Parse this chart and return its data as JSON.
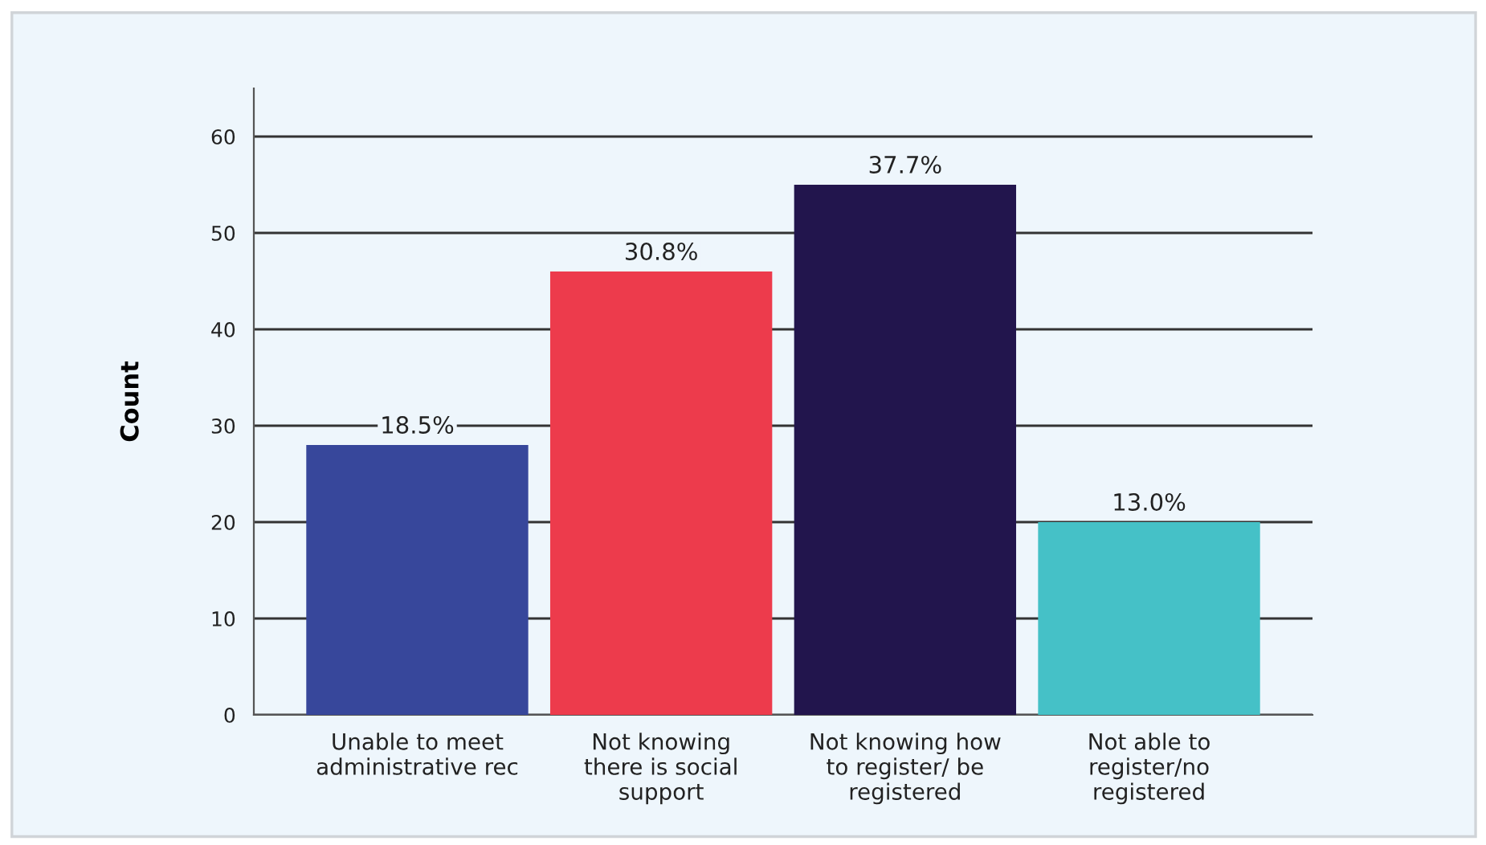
{
  "chart_data": {
    "type": "bar",
    "ylabel": "Count",
    "categories": [
      "Unable to meet\nadministrative rec",
      "Not knowing\nthere is social\nsupport",
      "Not knowing how\nto register/ be\nregistered",
      "Not able to\nregister/no\nregistered"
    ],
    "values": [
      28,
      46,
      55,
      20
    ],
    "colors": [
      "#37479b",
      "#ed3b4c",
      "#22154d",
      "#45c1c7"
    ],
    "annotations": [
      {
        "text": "18.5%",
        "x": "Unable to meet\nadministrative rec",
        "y": 28
      },
      {
        "text": "30.8%",
        "x": "Not knowing\nthere is social\nsupport",
        "y": 46
      },
      {
        "text": "37.7%",
        "x": "Not knowing how\nto register/ be\nregistered",
        "y": 55
      },
      {
        "text": "13.0%",
        "x": "Not able to\nregister/no\nregistered",
        "y": 20
      }
    ],
    "ylim": [
      0,
      65
    ],
    "yticks": [
      0,
      10,
      20,
      30,
      40,
      50,
      60
    ],
    "grid": "y"
  }
}
